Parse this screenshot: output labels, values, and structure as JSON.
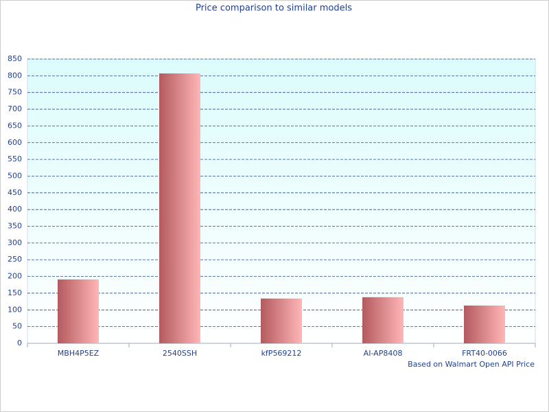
{
  "chart_data": {
    "type": "bar",
    "title": "Price comparison to similar models",
    "categories": [
      "MBH4P5EZ",
      "2540SSH",
      "kfP569212",
      "AI-AP8408",
      "FRT40-0066"
    ],
    "values": [
      191,
      807,
      134,
      138,
      113
    ],
    "color": "#b35a5f",
    "ylim": [
      0,
      850
    ],
    "yticks": [
      0,
      50,
      100,
      150,
      200,
      250,
      300,
      350,
      400,
      450,
      500,
      550,
      600,
      650,
      700,
      750,
      800,
      850
    ],
    "grid": true,
    "annotation": "Based on Walmart Open API Price"
  }
}
